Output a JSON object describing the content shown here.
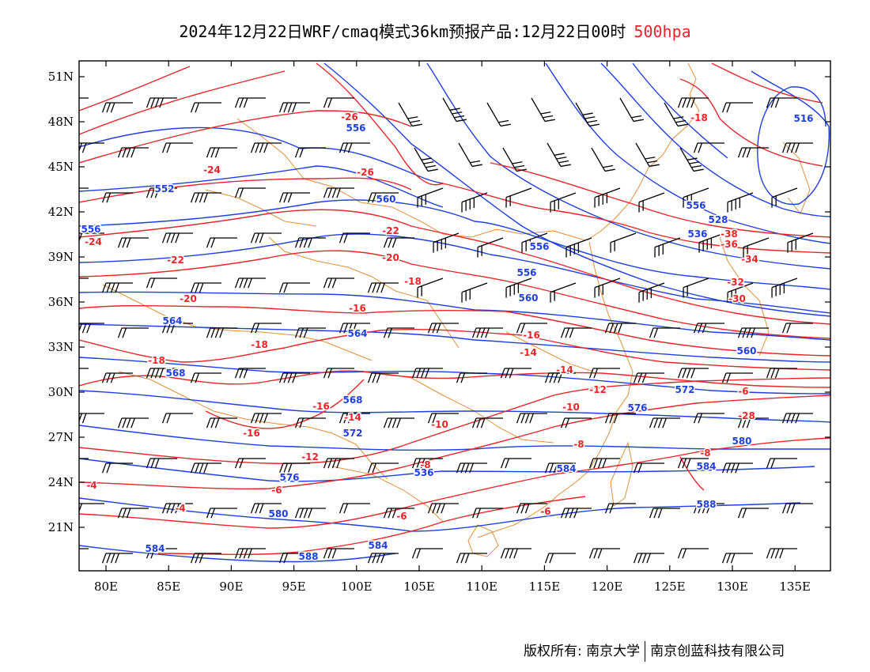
{
  "header": {
    "title": "2024年12月22日WRF/cmaq模式36km预报产品:12月22日00时",
    "level": "500hpa"
  },
  "colors": {
    "height_contour": "#1f3fe0",
    "temperature_contour": "#e8262a",
    "coastline_border": "#e0903a",
    "wind_barb": "#000000",
    "frame": "#000000"
  },
  "map": {
    "lon_ticks": [
      "80E",
      "85E",
      "90E",
      "95E",
      "100E",
      "105E",
      "110E",
      "115E",
      "120E",
      "125E",
      "130E",
      "135E"
    ],
    "lat_ticks": [
      "51N",
      "48N",
      "45N",
      "42N",
      "39N",
      "36N",
      "33N",
      "30N",
      "27N",
      "24N",
      "21N"
    ],
    "height_labels": [
      "556",
      "552",
      "556",
      "560",
      "556",
      "556",
      "560",
      "564",
      "564",
      "568",
      "568",
      "572",
      "576",
      "580",
      "584",
      "584",
      "584",
      "588",
      "516",
      "528",
      "536",
      "556",
      "560",
      "572",
      "576",
      "580",
      "584",
      "588",
      "536"
    ],
    "temperature_labels": [
      "-26",
      "-24",
      "-26",
      "-22",
      "-22",
      "-20",
      "-24",
      "-20",
      "-18",
      "-16",
      "-18",
      "-18",
      "-16",
      "-14",
      "-16",
      "-14",
      "-12",
      "-10",
      "-8",
      "-6",
      "-4",
      "-6",
      "-8",
      "-10",
      "-12",
      "-14",
      "-16",
      "-18",
      "-38",
      "-36",
      "-34",
      "-32",
      "-30",
      "-28",
      "-6",
      "-8",
      "-4",
      "-6"
    ],
    "wind_barbs": "present"
  },
  "footer": {
    "left": "版权所有: 南京大学",
    "right": "南京创蓝科技有限公司"
  }
}
